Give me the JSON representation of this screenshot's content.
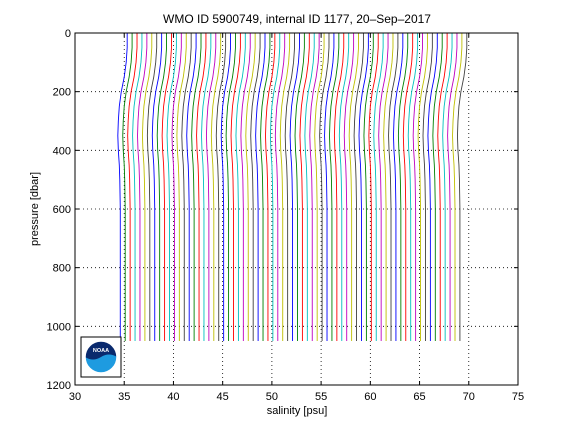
{
  "chart_data": {
    "type": "line",
    "title": "WMO ID 5900749, internal ID 1177, 20–Sep–2017",
    "xlabel": "salinity [psu]",
    "ylabel": "pressure [dbar]",
    "xlim": [
      30,
      75
    ],
    "ylim": [
      1200,
      0
    ],
    "x_ticks": [
      "30",
      "35",
      "40",
      "45",
      "50",
      "55",
      "60",
      "65",
      "70",
      "75"
    ],
    "y_ticks": [
      "0",
      "200",
      "400",
      "600",
      "800",
      "1000",
      "1200"
    ],
    "grid": true,
    "y_reversed": true,
    "offset_profiles": {
      "count": 70,
      "first_offset_psu": 0,
      "offset_step_psu": 0.5,
      "base_profile": {
        "pressure": [
          0,
          50,
          100,
          150,
          200,
          250,
          300,
          350,
          400,
          450,
          500,
          600,
          700,
          800,
          900,
          1000,
          1050
        ],
        "salinity": [
          35.3,
          35.3,
          35.2,
          35.0,
          34.7,
          34.5,
          34.4,
          34.35,
          34.4,
          34.5,
          34.55,
          34.6,
          34.6,
          34.6,
          34.6,
          34.6,
          34.6
        ]
      },
      "colors": [
        "#0000ff",
        "#008000",
        "#ff0000",
        "#00bfbf",
        "#bf00bf",
        "#bfbf00",
        "#404040"
      ]
    },
    "logo": {
      "text": "NOAA",
      "colors": {
        "top": "#0a2a6e",
        "bottom": "#1e9be0"
      }
    }
  }
}
